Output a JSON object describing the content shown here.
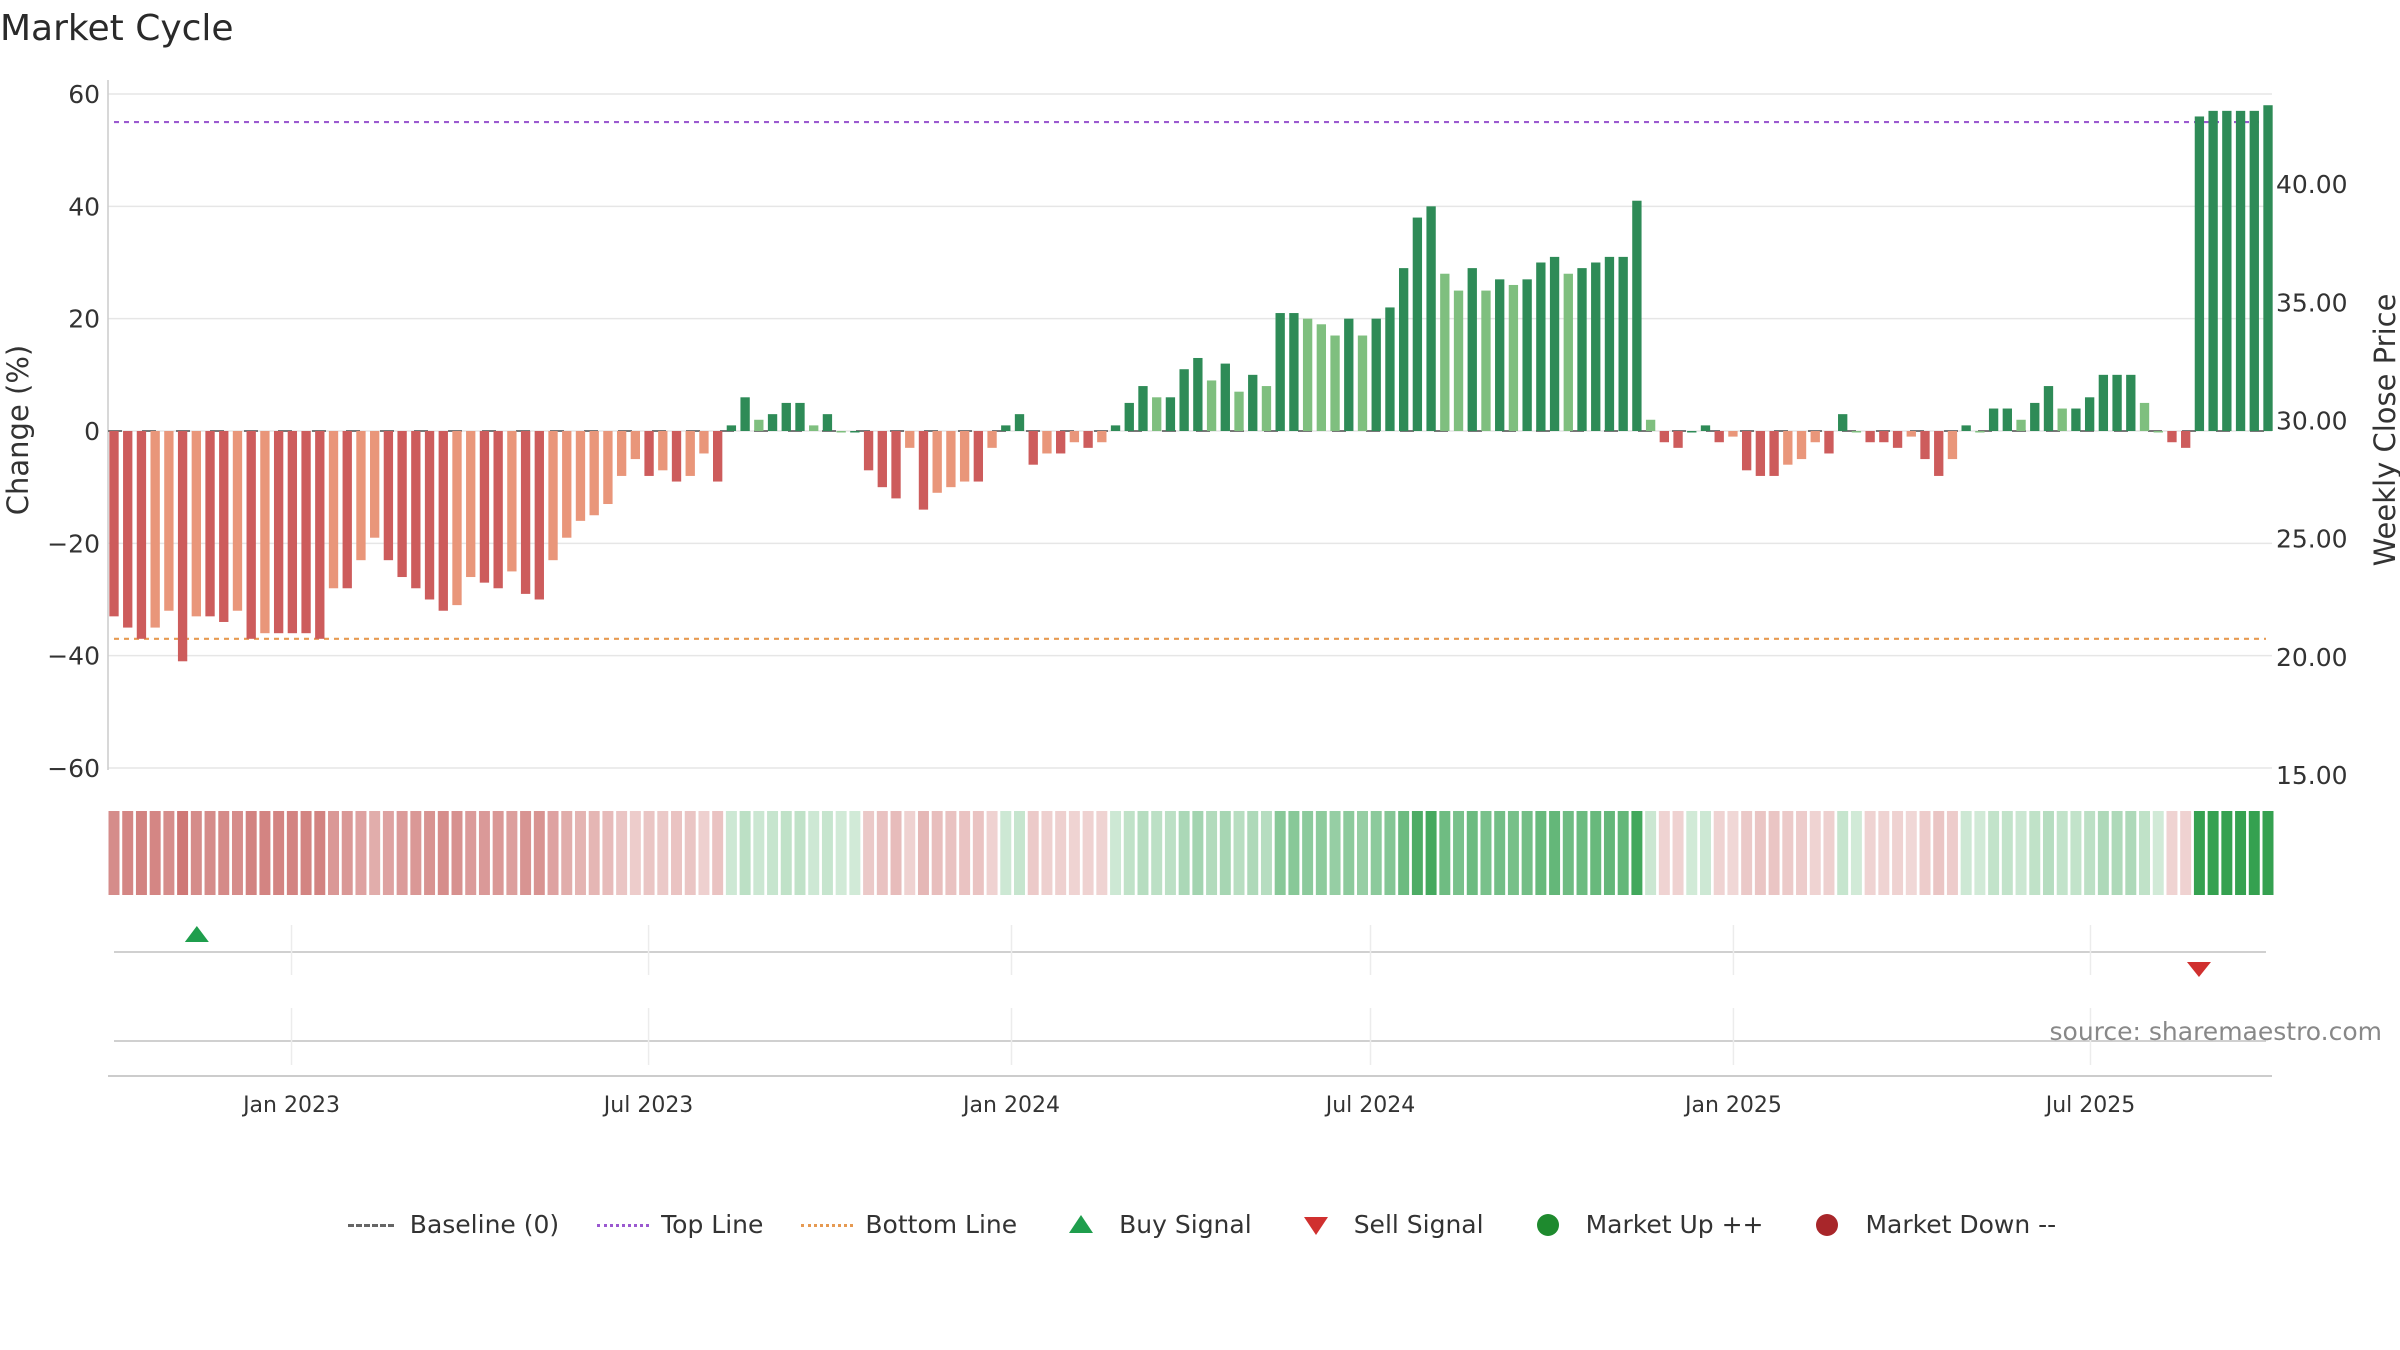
{
  "chart_data": {
    "type": "bar",
    "title": "Market Cycle",
    "ylabel_left": "Change (%)",
    "ylabel_right": "Weekly Close Price",
    "ylim_left": [
      -60,
      60
    ],
    "ylim_right": [
      15,
      45
    ],
    "yticks_left": [
      "60",
      "40",
      "20",
      "0",
      "−20",
      "−40",
      "−60"
    ],
    "yticks_left_values": [
      60,
      40,
      20,
      0,
      -20,
      -40,
      -60
    ],
    "yticks_right": [
      "40.00",
      "35.00",
      "30.00",
      "25.00",
      "20.00",
      "15.00"
    ],
    "yticks_right_values": [
      40,
      35,
      30,
      25,
      20,
      15
    ],
    "x_start": "2022-10-03",
    "x_end": "2025-09-29",
    "x_ticks": [
      "Jan 2023",
      "Jul 2023",
      "Jan 2024",
      "Jul 2024",
      "Jan 2025",
      "Jul 2025"
    ],
    "x_tick_dates": [
      "2023-01-01",
      "2023-07-01",
      "2024-01-01",
      "2024-07-01",
      "2025-01-01",
      "2025-07-01"
    ],
    "top_line": 55,
    "bottom_line": -37,
    "values": [
      -33,
      -35,
      -37,
      -35,
      -32,
      -41,
      -33,
      -33,
      -34,
      -32,
      -37,
      -36,
      -36,
      -36,
      -36,
      -37,
      -28,
      -28,
      -23,
      -19,
      -23,
      -26,
      -28,
      -30,
      -32,
      -31,
      -26,
      -27,
      -28,
      -25,
      -29,
      -30,
      -23,
      -19,
      -16,
      -15,
      -13,
      -8,
      -5,
      -8,
      -7,
      -9,
      -8,
      -4,
      -9,
      1,
      6,
      2,
      3,
      5,
      5,
      1,
      3,
      0,
      0,
      -7,
      -10,
      -12,
      -3,
      -14,
      -11,
      -10,
      -9,
      -9,
      -3,
      1,
      3,
      -6,
      -4,
      -4,
      -2,
      -3,
      -2,
      1,
      5,
      8,
      6,
      6,
      11,
      13,
      9,
      12,
      7,
      10,
      8,
      21,
      21,
      20,
      19,
      17,
      20,
      17,
      20,
      22,
      29,
      38,
      40,
      28,
      25,
      29,
      25,
      27,
      26,
      27,
      30,
      31,
      28,
      29,
      30,
      31,
      31,
      41,
      2,
      -2,
      -3,
      0,
      1,
      -2,
      -1,
      -7,
      -8,
      -8,
      -6,
      -5,
      -2,
      -4,
      3,
      0,
      -2,
      -2,
      -3,
      -1,
      -5,
      -8,
      -5,
      1,
      0,
      4,
      4,
      2,
      5,
      8,
      4,
      4,
      6,
      10,
      10,
      10,
      5,
      0,
      -2,
      -3,
      56,
      57,
      57,
      57,
      57,
      58
    ],
    "price_line_value": 30.0,
    "buy_signals": [
      "2022-11-14"
    ],
    "sell_signals": [
      "2025-08-25"
    ],
    "heat_strip": "weekly colour band mirroring the trend",
    "legend": [
      {
        "label": "Baseline (0)",
        "marker": "dash",
        "color": "#666666"
      },
      {
        "label": "Top Line",
        "marker": "dotted",
        "color": "#9b59d0"
      },
      {
        "label": "Bottom Line",
        "marker": "dotted",
        "color": "#e69a52"
      },
      {
        "label": "Buy Signal",
        "marker": "triangle-up",
        "color": "#1f9e4d"
      },
      {
        "label": "Sell Signal",
        "marker": "triangle-down",
        "color": "#d0302f"
      },
      {
        "label": "Market Up ++",
        "marker": "circle",
        "color": "#1e8a2e"
      },
      {
        "label": "Market Down --",
        "marker": "circle",
        "color": "#a8262a"
      }
    ],
    "legend_placement": "bottom",
    "colors": {
      "up_strong": "#2e8b57",
      "up_light": "#7fbf7f",
      "down_strong": "#cd5c5c",
      "down_light": "#e9967a"
    }
  },
  "source": "source: sharemaestro.com"
}
